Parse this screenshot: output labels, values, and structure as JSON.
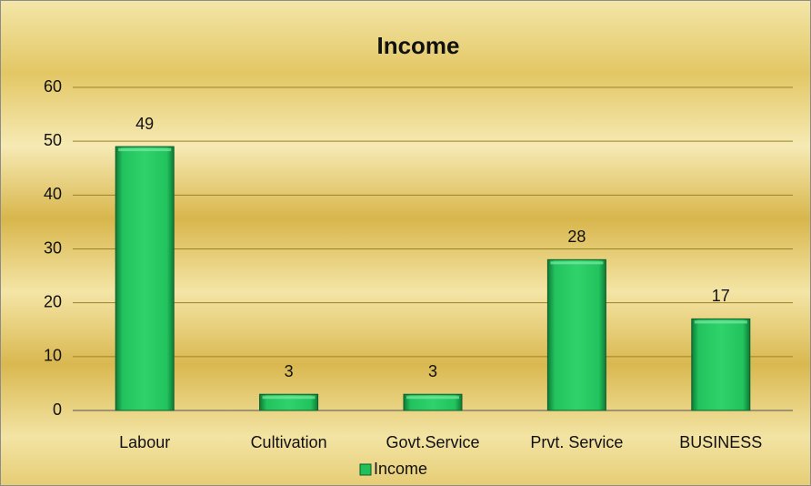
{
  "chart_data": {
    "type": "bar",
    "title": "Income",
    "categories": [
      "Labour",
      "Cultivation",
      "Govt.Service",
      "Prvt. Service",
      "BUSINESS"
    ],
    "series": [
      {
        "name": "Income",
        "color": "#1fbf5a",
        "values": [
          49,
          3,
          3,
          28,
          17
        ]
      }
    ],
    "ylim": [
      0,
      60
    ],
    "yticks": [
      0,
      10,
      20,
      30,
      40,
      50,
      60
    ],
    "grid": true,
    "legend": "bottom"
  }
}
